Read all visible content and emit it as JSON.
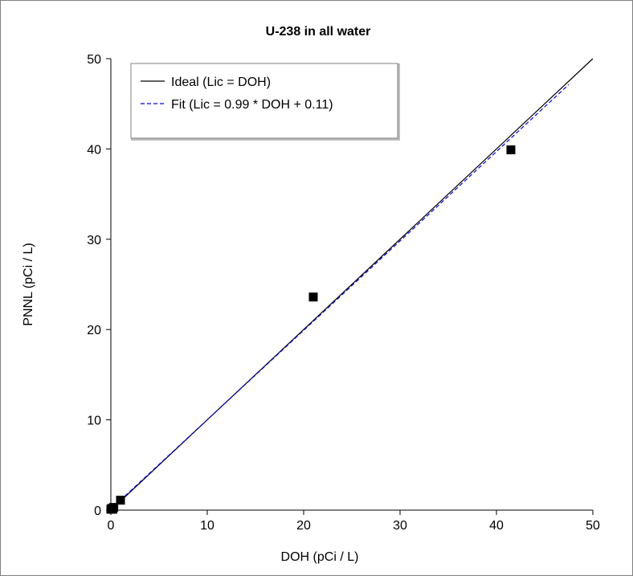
{
  "chart_data": {
    "type": "scatter",
    "title": "U-238 in all water",
    "xlabel": "DOH (pCi / L)",
    "ylabel": "PNNL (pCi / L)",
    "xlim": [
      0,
      50
    ],
    "ylim": [
      0,
      50
    ],
    "x_ticks": [
      "0",
      "10",
      "20",
      "30",
      "40",
      "50"
    ],
    "y_ticks": [
      "0",
      "10",
      "20",
      "30",
      "40",
      "50"
    ],
    "grid": false,
    "legend_position": "top-left",
    "points": {
      "x": [
        0.0,
        0.1,
        0.2,
        0.3,
        1.0,
        21.0,
        41.5
      ],
      "y": [
        0.1,
        0.2,
        0.1,
        0.3,
        1.1,
        23.6,
        39.9
      ]
    },
    "series": [
      {
        "name": "Ideal (Lic = DOH)",
        "style": "solid",
        "color": "#000000",
        "x": [
          0,
          50
        ],
        "y": [
          0,
          50
        ]
      },
      {
        "name": "Fit (Lic = 0.99 * DOH + 0.11)",
        "style": "dashed",
        "color": "#0000ff",
        "x": [
          0,
          47.5
        ],
        "y": [
          0.11,
          47.135
        ]
      }
    ]
  }
}
